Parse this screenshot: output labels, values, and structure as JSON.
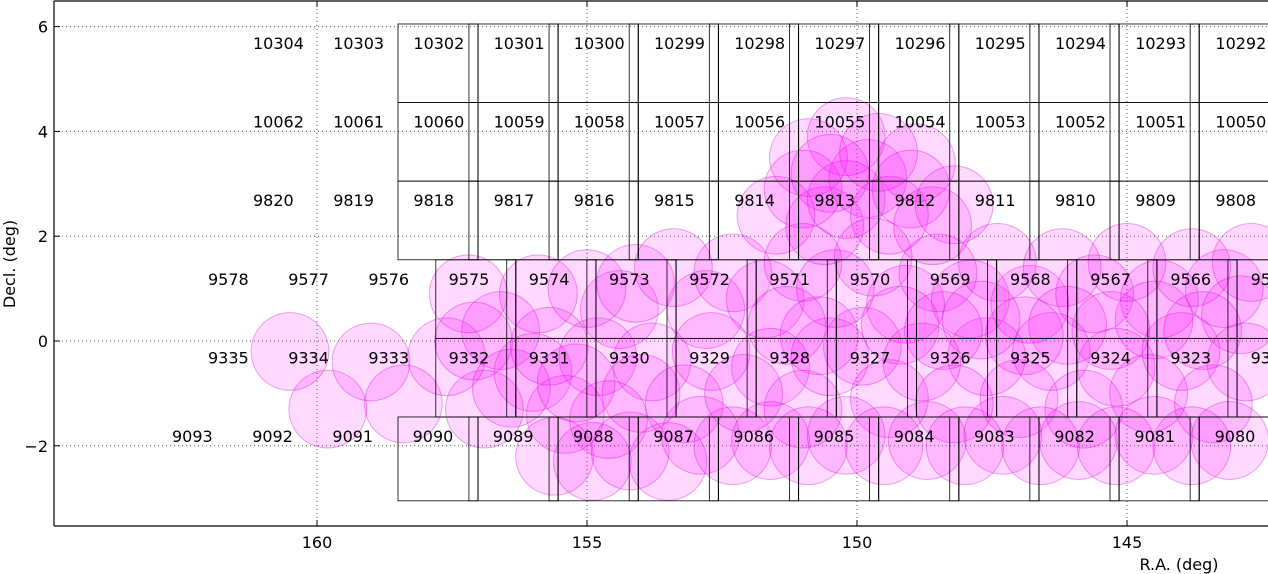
{
  "chart_data": {
    "type": "scatter",
    "xlabel": "R.A. (deg)",
    "ylabel": "Decl. (deg)",
    "x_inverted": true,
    "xlim": [
      165.0,
      142.5
    ],
    "ylim": [
      -3.5,
      6.5
    ],
    "grid": true,
    "x_ticks": [
      160,
      155,
      150,
      145
    ],
    "x_tick_labels": [
      "160",
      "155",
      "150",
      "145"
    ],
    "y_ticks": [
      -2,
      0,
      2,
      4,
      6
    ],
    "y_tick_labels": [
      "−2",
      "0",
      "2",
      "4",
      "6"
    ],
    "colors": {
      "circle_fill": "#ff00ff",
      "circle_fill_opacity": 0.15,
      "circle_stroke": "#cc00cc",
      "frame": "#000000",
      "grid": "#555555"
    },
    "field_rows": [
      {
        "dec_lo": 4.55,
        "dec_hi": 6.05,
        "labels": [
          "10304",
          "10303",
          "10302",
          "10301",
          "10300",
          "10299",
          "10298",
          "10297",
          "10296",
          "10295",
          "10294",
          "10293",
          "10292"
        ]
      },
      {
        "dec_lo": 3.05,
        "dec_hi": 4.55,
        "labels": [
          "10062",
          "10061",
          "10060",
          "10059",
          "10058",
          "10057",
          "10056",
          "10055",
          "10054",
          "10053",
          "10052",
          "10051",
          "10050"
        ]
      },
      {
        "dec_lo": 1.55,
        "dec_hi": 3.05,
        "labels": [
          "9820",
          "9819",
          "9818",
          "9817",
          "9816",
          "9815",
          "9814",
          "9813",
          "9812",
          "9811",
          "9810",
          "9809",
          "9808"
        ]
      },
      {
        "dec_lo": 0.05,
        "dec_hi": 1.55,
        "labels": [
          "9578",
          "9577",
          "9576",
          "9575",
          "9574",
          "9573",
          "9572",
          "9571",
          "9570",
          "9569",
          "9568",
          "9567",
          "9566",
          "95"
        ]
      },
      {
        "dec_lo": -1.45,
        "dec_hi": 0.05,
        "labels": [
          "9335",
          "9334",
          "9333",
          "9332",
          "9331",
          "9330",
          "9329",
          "9328",
          "9327",
          "9326",
          "9325",
          "9324",
          "9323",
          "93"
        ]
      },
      {
        "dec_lo": -3.05,
        "dec_hi": -1.45,
        "labels": [
          "9093",
          "9092",
          "9091",
          "9090",
          "9089",
          "9088",
          "9087",
          "9086",
          "9085",
          "9084",
          "9083",
          "9082",
          "9081",
          "9080"
        ]
      }
    ],
    "circles": {
      "radius_deg": 0.72,
      "points": [
        [
          160.5,
          -0.2
        ],
        [
          159.8,
          -1.3
        ],
        [
          159.0,
          -0.4
        ],
        [
          158.4,
          -1.2
        ],
        [
          157.6,
          -0.3
        ],
        [
          156.9,
          -1.3
        ],
        [
          156.6,
          0.2
        ],
        [
          156.0,
          -0.6
        ],
        [
          155.4,
          -1.4
        ],
        [
          154.8,
          -0.3
        ],
        [
          154.4,
          0.6
        ],
        [
          154.0,
          -1.0
        ],
        [
          157.2,
          0.9
        ],
        [
          155.9,
          0.9
        ],
        [
          155.0,
          1.0
        ],
        [
          154.1,
          1.1
        ],
        [
          153.4,
          1.4
        ],
        [
          152.8,
          0.6
        ],
        [
          152.3,
          1.3
        ],
        [
          151.7,
          0.8
        ],
        [
          151.0,
          1.5
        ],
        [
          150.4,
          1.0
        ],
        [
          149.7,
          1.6
        ],
        [
          149.1,
          0.7
        ],
        [
          148.5,
          1.3
        ],
        [
          147.9,
          0.8
        ],
        [
          147.4,
          1.5
        ],
        [
          146.8,
          0.7
        ],
        [
          146.2,
          1.4
        ],
        [
          145.6,
          0.9
        ],
        [
          145.0,
          1.5
        ],
        [
          144.4,
          0.8
        ],
        [
          143.8,
          1.4
        ],
        [
          143.2,
          1.0
        ],
        [
          142.7,
          1.5
        ],
        [
          153.8,
          -0.4
        ],
        [
          153.2,
          -1.2
        ],
        [
          152.7,
          -0.2
        ],
        [
          152.1,
          -1.0
        ],
        [
          151.6,
          -0.5
        ],
        [
          151.0,
          -1.3
        ],
        [
          150.5,
          -0.3
        ],
        [
          149.9,
          -0.1
        ],
        [
          149.4,
          -1.1
        ],
        [
          148.8,
          -0.4
        ],
        [
          148.2,
          -1.2
        ],
        [
          147.6,
          -0.3
        ],
        [
          147.0,
          -1.1
        ],
        [
          146.4,
          -0.2
        ],
        [
          145.8,
          -1.3
        ],
        [
          145.2,
          -0.5
        ],
        [
          144.6,
          -1.0
        ],
        [
          144.0,
          -0.2
        ],
        [
          143.4,
          -1.2
        ],
        [
          142.8,
          -0.4
        ],
        [
          152.9,
          -1.8
        ],
        [
          152.3,
          -2.0
        ],
        [
          151.6,
          -1.9
        ],
        [
          150.9,
          -2.0
        ],
        [
          150.2,
          -1.8
        ],
        [
          149.5,
          -2.0
        ],
        [
          148.7,
          -1.9
        ],
        [
          148.0,
          -2.0
        ],
        [
          147.3,
          -1.8
        ],
        [
          146.6,
          -2.0
        ],
        [
          145.9,
          -1.9
        ],
        [
          145.2,
          -2.0
        ],
        [
          144.5,
          -1.8
        ],
        [
          143.8,
          -2.0
        ],
        [
          143.1,
          -1.9
        ],
        [
          151.5,
          2.4
        ],
        [
          151.0,
          2.9
        ],
        [
          150.6,
          2.2
        ],
        [
          150.2,
          2.7
        ],
        [
          149.8,
          3.1
        ],
        [
          149.4,
          2.4
        ],
        [
          149.0,
          2.9
        ],
        [
          148.6,
          2.2
        ],
        [
          148.2,
          2.6
        ],
        [
          150.9,
          3.5
        ],
        [
          150.2,
          3.9
        ],
        [
          149.6,
          3.6
        ],
        [
          148.9,
          3.4
        ],
        [
          150.5,
          3.2
        ],
        [
          157.1,
          0.0
        ],
        [
          156.4,
          -0.9
        ],
        [
          155.7,
          -0.1
        ],
        [
          155.2,
          -0.8
        ],
        [
          154.6,
          -1.5
        ],
        [
          151.3,
          0.3
        ],
        [
          150.7,
          0.1
        ],
        [
          149.2,
          0.3
        ],
        [
          148.4,
          0.2
        ],
        [
          147.7,
          0.4
        ],
        [
          146.9,
          0.1
        ],
        [
          146.1,
          0.3
        ],
        [
          145.3,
          0.2
        ],
        [
          144.5,
          0.4
        ],
        [
          143.6,
          0.2
        ],
        [
          142.9,
          0.5
        ],
        [
          155.6,
          -2.2
        ],
        [
          154.9,
          -2.3
        ],
        [
          154.2,
          -2.1
        ],
        [
          153.5,
          -2.3
        ]
      ]
    }
  }
}
